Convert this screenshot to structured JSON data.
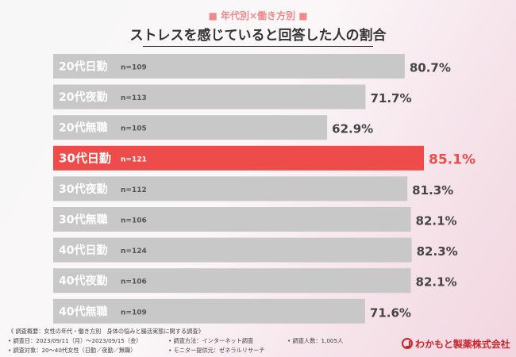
{
  "header": {
    "subtitle": "■ 年代別×働き方別 ■",
    "title": "ストレスを感じていると回答した人の割合"
  },
  "chart_data": {
    "type": "bar",
    "orientation": "horizontal",
    "title": "ストレスを感じていると回答した人の割合",
    "categories": [
      "20代日勤",
      "20代夜勤",
      "20代無職",
      "30代日勤",
      "30代夜勤",
      "30代無職",
      "40代日勤",
      "40代夜勤",
      "40代無職"
    ],
    "n_labels": [
      "n=109",
      "n=113",
      "n=105",
      "n=121",
      "n=112",
      "n=106",
      "n=124",
      "n=106",
      "n=109"
    ],
    "values": [
      80.7,
      71.7,
      62.9,
      85.1,
      81.3,
      82.1,
      82.3,
      82.1,
      71.6
    ],
    "value_labels": [
      "80.7%",
      "71.7%",
      "62.9%",
      "85.1%",
      "81.3%",
      "82.1%",
      "82.3%",
      "82.1%",
      "71.6%"
    ],
    "highlight_index": 3,
    "colors": {
      "bar": "#c8c8c8",
      "highlight": "#ee4b4b",
      "label": "#ffffff",
      "value": "#444444",
      "highlight_value": "#ee4b4b"
    }
  },
  "footer": {
    "summary": "《 調査概要：女性の年代・働き方別　身体の悩みと腸活実態に関する調査》",
    "date": "• 調査日：2023/09/11（月）〜2023/09/15（金）",
    "method": "• 調査方法：インターネット調査",
    "count": "• 調査人数：1,005人",
    "target": "• 調査対象：20〜40代女性（日勤／夜勤／無職）",
    "provider": "• モニター提供元：ゼネラルリサーチ"
  },
  "logo": {
    "text": "わかもと製薬株式会社",
    "icon": "wakamoto-logo-icon"
  }
}
